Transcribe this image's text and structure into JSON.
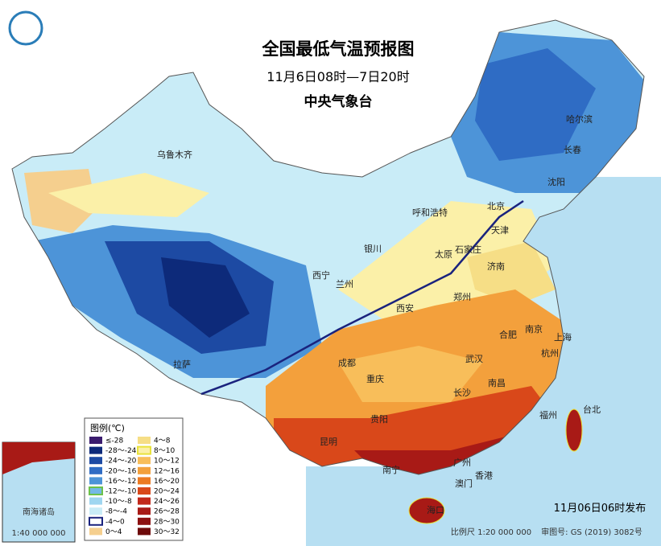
{
  "header": {
    "title": "全国最低气温预报图",
    "subtitle": "11月6日08时—7日20时",
    "agency": "中央气象台"
  },
  "legend": {
    "title": "图例(℃)",
    "items": [
      {
        "label": "≤-28",
        "color": "#3b1c6e"
      },
      {
        "label": "-28～-24",
        "color": "#0d2a7a"
      },
      {
        "label": "-24～-20",
        "color": "#1d4aa3"
      },
      {
        "label": "-20～-16",
        "color": "#2f6cc4"
      },
      {
        "label": "-16～-12",
        "color": "#4d94d8"
      },
      {
        "label": "-12～-10",
        "color": "#74b9e6",
        "border": "#6cc24a"
      },
      {
        "label": "-10～-8",
        "color": "#9fd6f0"
      },
      {
        "label": "-8～-4",
        "color": "#c9ecf7"
      },
      {
        "label": "-4～0",
        "color": "#ffffff",
        "border": "#1a237e"
      },
      {
        "label": "0～4",
        "color": "#f5cf8e"
      },
      {
        "label": "4～8",
        "color": "#f6de86"
      },
      {
        "label": "8～10",
        "color": "#fbf0a8",
        "border": "#e8e23a"
      },
      {
        "label": "10～12",
        "color": "#f8be5a"
      },
      {
        "label": "12～16",
        "color": "#f3a03c"
      },
      {
        "label": "16～20",
        "color": "#ec7a22"
      },
      {
        "label": "20～24",
        "color": "#d9481a"
      },
      {
        "label": "24～26",
        "color": "#c2281a"
      },
      {
        "label": "26～28",
        "color": "#a81a16"
      },
      {
        "label": "28～30",
        "color": "#8c1010"
      },
      {
        "label": "30～32",
        "color": "#6e0a0a"
      }
    ]
  },
  "cities": [
    "乌鲁木齐",
    "哈尔滨",
    "长春",
    "沈阳",
    "北京",
    "天津",
    "呼和浩特",
    "石家庄",
    "太原",
    "济南",
    "银川",
    "西宁",
    "兰州",
    "西安",
    "郑州",
    "合肥",
    "南京",
    "上海",
    "杭州",
    "武汉",
    "成都",
    "重庆",
    "长沙",
    "南昌",
    "拉萨",
    "贵阳",
    "昆明",
    "福州",
    "台北",
    "广州",
    "南宁",
    "澳门",
    "香港",
    "海口"
  ],
  "inset": {
    "title": "南海诸岛",
    "scale": "1:40 000 000"
  },
  "footer": {
    "issued": "11月06日06时发布",
    "scale": "比例尺 1:20 000 000",
    "review": "审图号: GS (2019) 3082号"
  }
}
